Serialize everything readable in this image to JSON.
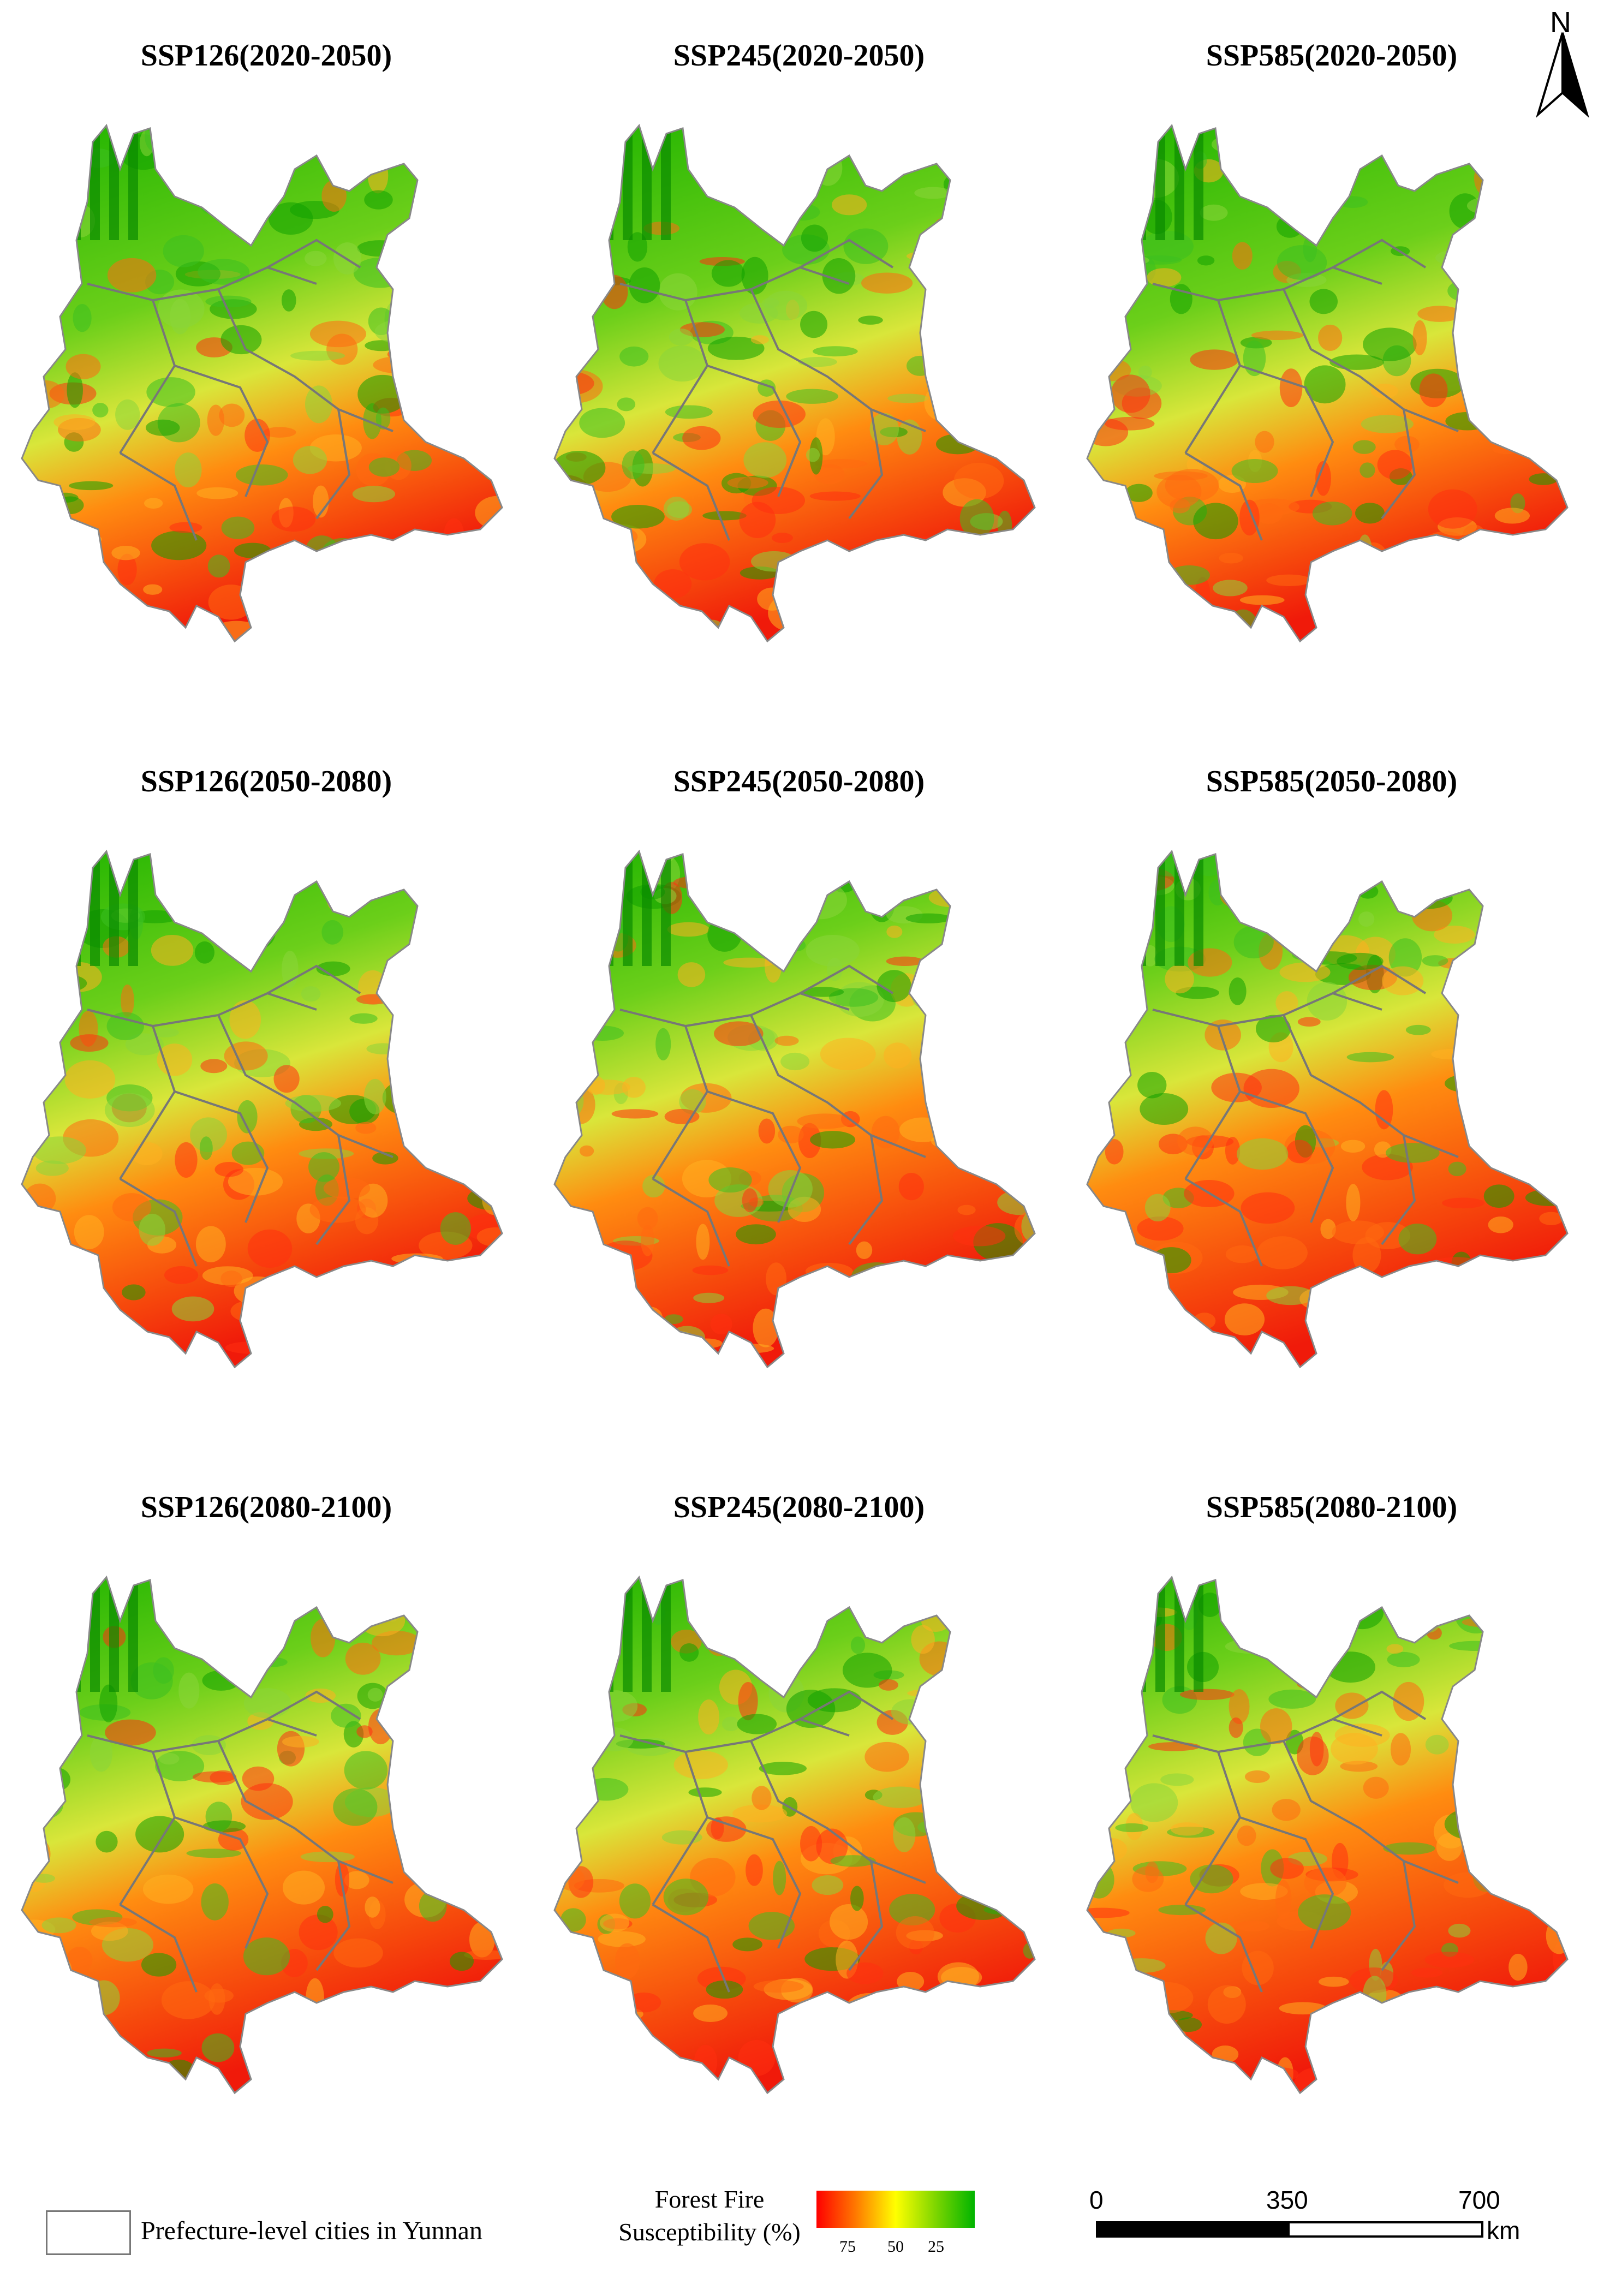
{
  "panels": [
    {
      "title": "SSP126(2020-2050)",
      "red_level": 0.35
    },
    {
      "title": "SSP245(2020-2050)",
      "red_level": 0.38
    },
    {
      "title": "SSP585(2020-2050)",
      "red_level": 0.36
    },
    {
      "title": "SSP126(2050-2080)",
      "red_level": 0.45
    },
    {
      "title": "SSP245(2050-2080)",
      "red_level": 0.5
    },
    {
      "title": "SSP585(2050-2080)",
      "red_level": 0.58
    },
    {
      "title": "SSP126(2080-2100)",
      "red_level": 0.52
    },
    {
      "title": "SSP245(2080-2100)",
      "red_level": 0.55
    },
    {
      "title": "SSP585(2080-2100)",
      "red_level": 0.62
    }
  ],
  "north": {
    "label": "N",
    "icon": "north-arrow-icon"
  },
  "legend": {
    "boundary_label": "Prefecture-level cities in Yunnan",
    "ramp_title_line1": "Forest Fire",
    "ramp_title_line2": "Susceptibility (%)",
    "ramp_ticks": [
      "75",
      "50",
      "25"
    ],
    "ramp_colors": [
      "#ff0000",
      "#ff7a00",
      "#ffff00",
      "#7fd600",
      "#00b400"
    ]
  },
  "scale": {
    "labels": [
      "0",
      "350",
      "700"
    ],
    "unit": "km"
  }
}
